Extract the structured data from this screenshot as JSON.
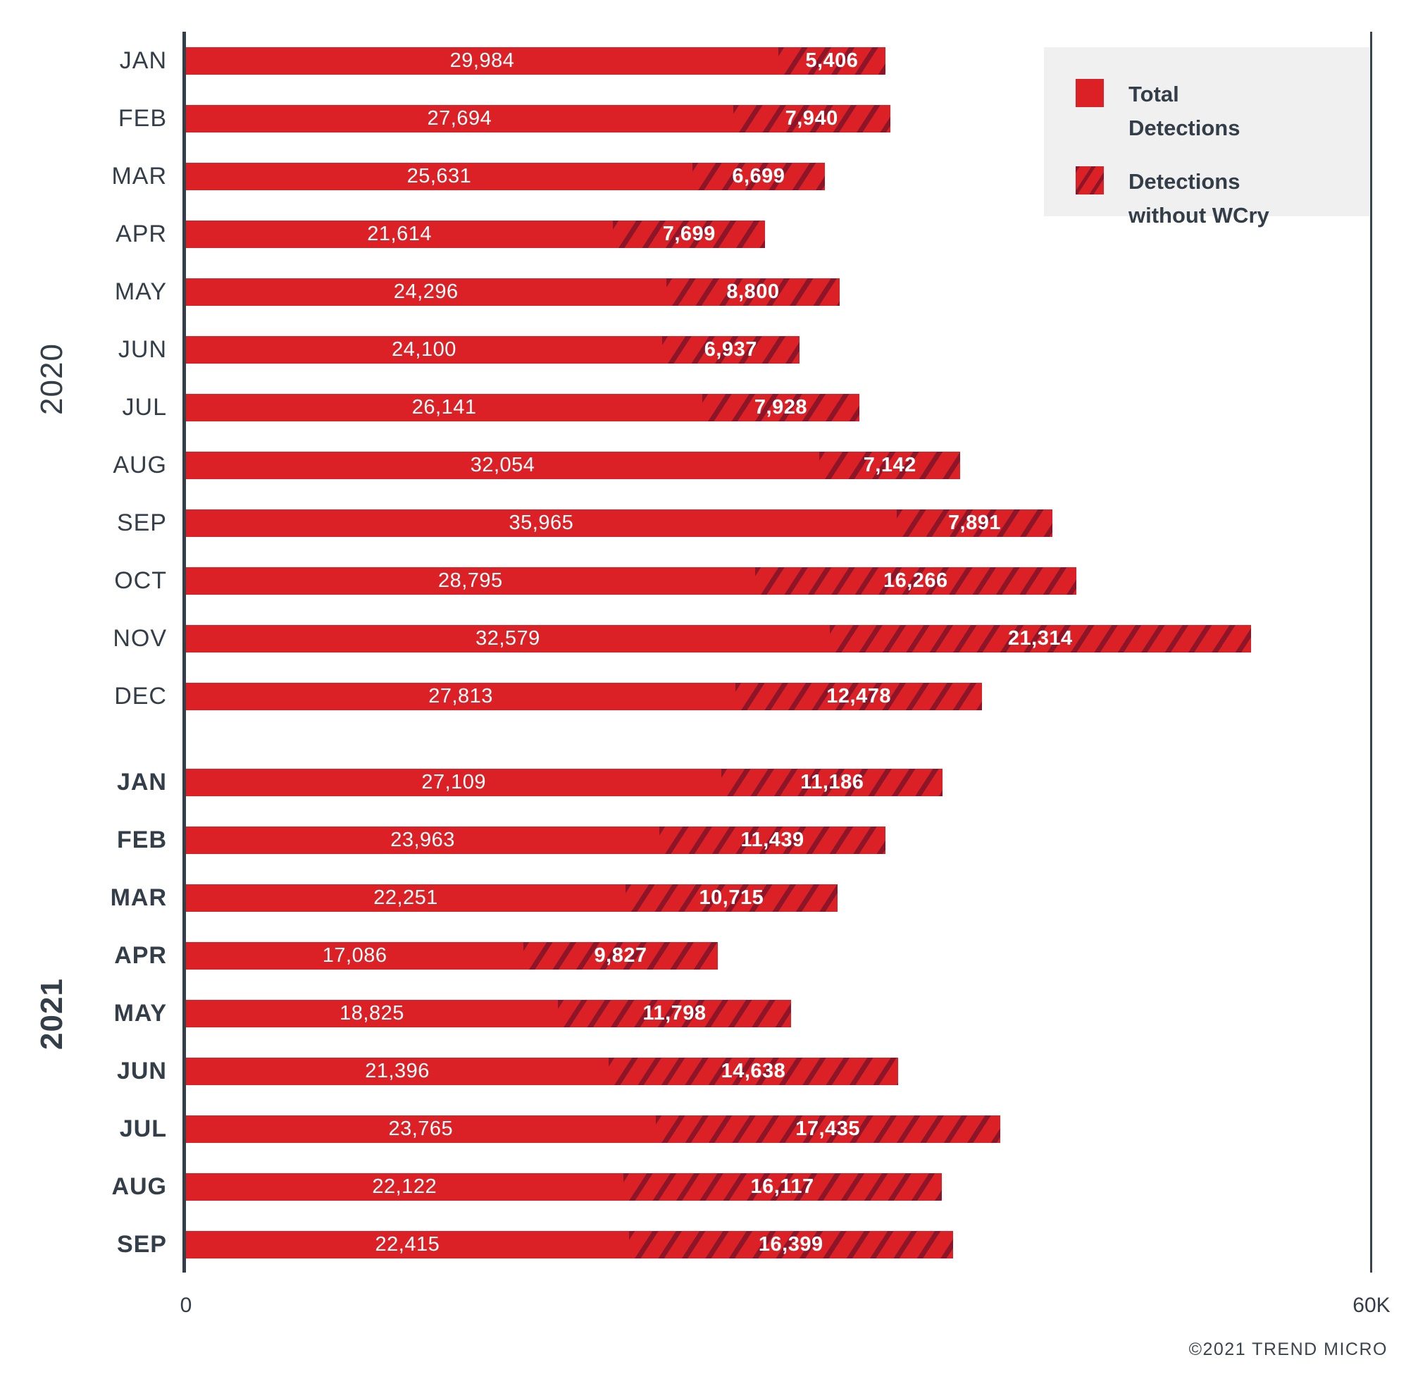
{
  "chart_data": {
    "type": "bar",
    "orientation": "horizontal",
    "stacked": true,
    "xlim": [
      0,
      60000
    ],
    "x_ticks": [
      "0",
      "60K"
    ],
    "grid": false,
    "legend_position": "top-right",
    "legend": [
      {
        "label": "Total Detections",
        "style": "solid"
      },
      {
        "label": "Detections without WCry",
        "style": "hatched"
      }
    ],
    "groups": [
      {
        "year": "2020",
        "rows": [
          {
            "month": "JAN",
            "total": 29984,
            "total_label": "29,984",
            "without_wcry": 5406,
            "without_wcry_label": "5,406"
          },
          {
            "month": "FEB",
            "total": 27694,
            "total_label": "27,694",
            "without_wcry": 7940,
            "without_wcry_label": "7,940"
          },
          {
            "month": "MAR",
            "total": 25631,
            "total_label": "25,631",
            "without_wcry": 6699,
            "without_wcry_label": "6,699"
          },
          {
            "month": "APR",
            "total": 21614,
            "total_label": "21,614",
            "without_wcry": 7699,
            "without_wcry_label": "7,699"
          },
          {
            "month": "MAY",
            "total": 24296,
            "total_label": "24,296",
            "without_wcry": 8800,
            "without_wcry_label": "8,800"
          },
          {
            "month": "JUN",
            "total": 24100,
            "total_label": "24,100",
            "without_wcry": 6937,
            "without_wcry_label": "6,937"
          },
          {
            "month": "JUL",
            "total": 26141,
            "total_label": "26,141",
            "without_wcry": 7928,
            "without_wcry_label": "7,928"
          },
          {
            "month": "AUG",
            "total": 32054,
            "total_label": "32,054",
            "without_wcry": 7142,
            "without_wcry_label": "7,142"
          },
          {
            "month": "SEP",
            "total": 35965,
            "total_label": "35,965",
            "without_wcry": 7891,
            "without_wcry_label": "7,891"
          },
          {
            "month": "OCT",
            "total": 28795,
            "total_label": "28,795",
            "without_wcry": 16266,
            "without_wcry_label": "16,266"
          },
          {
            "month": "NOV",
            "total": 32579,
            "total_label": "32,579",
            "without_wcry": 21314,
            "without_wcry_label": "21,314"
          },
          {
            "month": "DEC",
            "total": 27813,
            "total_label": "27,813",
            "without_wcry": 12478,
            "without_wcry_label": "12,478"
          }
        ]
      },
      {
        "year": "2021",
        "rows": [
          {
            "month": "JAN",
            "total": 27109,
            "total_label": "27,109",
            "without_wcry": 11186,
            "without_wcry_label": "11,186"
          },
          {
            "month": "FEB",
            "total": 23963,
            "total_label": "23,963",
            "without_wcry": 11439,
            "without_wcry_label": "11,439"
          },
          {
            "month": "MAR",
            "total": 22251,
            "total_label": "22,251",
            "without_wcry": 10715,
            "without_wcry_label": "10,715"
          },
          {
            "month": "APR",
            "total": 17086,
            "total_label": "17,086",
            "without_wcry": 9827,
            "without_wcry_label": "9,827"
          },
          {
            "month": "MAY",
            "total": 18825,
            "total_label": "18,825",
            "without_wcry": 11798,
            "without_wcry_label": "11,798"
          },
          {
            "month": "JUN",
            "total": 21396,
            "total_label": "21,396",
            "without_wcry": 14638,
            "without_wcry_label": "14,638"
          },
          {
            "month": "JUL",
            "total": 23765,
            "total_label": "23,765",
            "without_wcry": 17435,
            "without_wcry_label": "17,435"
          },
          {
            "month": "AUG",
            "total": 22122,
            "total_label": "22,122",
            "without_wcry": 16117,
            "without_wcry_label": "16,117"
          },
          {
            "month": "SEP",
            "total": 22415,
            "total_label": "22,415",
            "without_wcry": 16399,
            "without_wcry_label": "16,399"
          }
        ]
      }
    ],
    "colors": {
      "bar_red": "#db2026",
      "hatch_stripe": "#8c1528",
      "text_dark": "#333e48",
      "legend_background": "#f0f0f0",
      "value_text": "#ffffff"
    },
    "footer": "©2021 TREND MICRO"
  }
}
